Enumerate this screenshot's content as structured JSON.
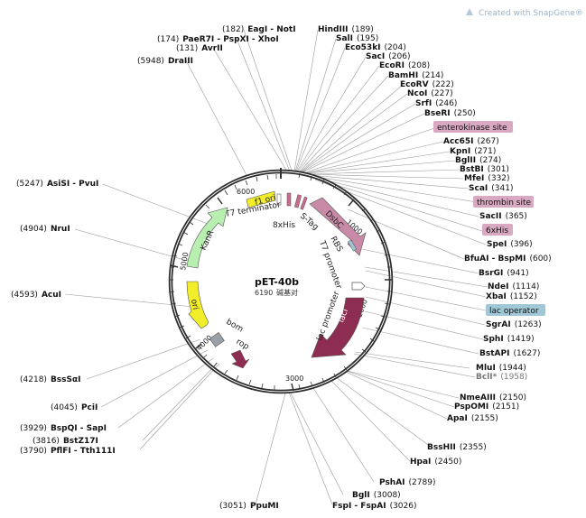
{
  "plasmid": {
    "name": "pET-40b",
    "size": "6190",
    "size_unit": "碱基对"
  },
  "credit": "Created with SnapGene®",
  "ticks": [
    "1000",
    "2000",
    "3000",
    "4000",
    "5000",
    "6000"
  ],
  "sites": [
    {
      "name": "PaeR7I - PspXI - XhoI",
      "pos": "(174)"
    },
    {
      "name": "EagI - NotI",
      "pos": "(182)"
    },
    {
      "name": "AvrII",
      "pos": "(131)"
    },
    {
      "name": "DraIII",
      "pos": "(5948)"
    },
    {
      "name": "HindIII",
      "pos": "(189)"
    },
    {
      "name": "SalI",
      "pos": "(195)"
    },
    {
      "name": "Eco53kI",
      "pos": "(204)"
    },
    {
      "name": "SacI",
      "pos": "(206)"
    },
    {
      "name": "EcoRI",
      "pos": "(208)"
    },
    {
      "name": "BamHI",
      "pos": "(214)"
    },
    {
      "name": "EcoRV",
      "pos": "(222)"
    },
    {
      "name": "NcoI",
      "pos": "(227)"
    },
    {
      "name": "SrfI",
      "pos": "(246)"
    },
    {
      "name": "BseRI",
      "pos": "(250)"
    },
    {
      "name": "Acc65I",
      "pos": "(267)"
    },
    {
      "name": "KpnI",
      "pos": "(271)"
    },
    {
      "name": "BglII",
      "pos": "(274)"
    },
    {
      "name": "BstBI",
      "pos": "(301)"
    },
    {
      "name": "MfeI",
      "pos": "(332)"
    },
    {
      "name": "ScaI",
      "pos": "(341)"
    },
    {
      "name": "SacII",
      "pos": "(365)"
    },
    {
      "name": "SpeI",
      "pos": "(396)"
    },
    {
      "name": "BfuAI - BspMI",
      "pos": "(600)"
    },
    {
      "name": "BsrGI",
      "pos": "(941)"
    },
    {
      "name": "NdeI",
      "pos": "(1114)"
    },
    {
      "name": "XbaI",
      "pos": "(1152)"
    },
    {
      "name": "SgrAI",
      "pos": "(1263)"
    },
    {
      "name": "SphI",
      "pos": "(1419)"
    },
    {
      "name": "BstAPI",
      "pos": "(1627)"
    },
    {
      "name": "MluI",
      "pos": "(1944)"
    },
    {
      "name": "BclI*",
      "pos": "(1958)"
    },
    {
      "name": "NmeAIII",
      "pos": "(2150)"
    },
    {
      "name": "PspOMI",
      "pos": "(2151)"
    },
    {
      "name": "ApaI",
      "pos": "(2155)"
    },
    {
      "name": "BssHII",
      "pos": "(2355)"
    },
    {
      "name": "HpaI",
      "pos": "(2450)"
    },
    {
      "name": "PshAI",
      "pos": "(2789)"
    },
    {
      "name": "BglI",
      "pos": "(3008)"
    },
    {
      "name": "FspI - FspAI",
      "pos": "(3026)"
    },
    {
      "name": "PpuMI",
      "pos": "(3051)"
    },
    {
      "name": "PflFI - Tth111I",
      "pos": "(3790)"
    },
    {
      "name": "BstZ17I",
      "pos": "(3816)"
    },
    {
      "name": "BspQI - SapI",
      "pos": "(3929)"
    },
    {
      "name": "PciI",
      "pos": "(4045)"
    },
    {
      "name": "BssSαI",
      "pos": "(4218)"
    },
    {
      "name": "AcuI",
      "pos": "(4593)"
    },
    {
      "name": "NruI",
      "pos": "(4904)"
    },
    {
      "name": "AsiSI - PvuI",
      "pos": "(5247)"
    }
  ],
  "feature_boxes": [
    {
      "label": "enterokinase site",
      "color": "#d9a9c2"
    },
    {
      "label": "thrombin site",
      "color": "#d9a9c2"
    },
    {
      "label": "6xHis",
      "color": "#d9a9c2"
    },
    {
      "label": "lac operator",
      "color": "#9fc7d6"
    }
  ],
  "features": {
    "f1_ori": "f1 ori",
    "t7_terminator": "T7 terminator",
    "his8": "8xHis",
    "stag": "S-Tag",
    "dsbc": "DsbC",
    "rbs": "RBS",
    "t7_promoter": "T7 promoter",
    "kanr": "KanR",
    "ori": "ori",
    "bom": "bom",
    "rop": "rop",
    "laci": "lacI",
    "lac_promoter": "lac promoter"
  },
  "colors": {
    "f1_ori": "#f3ee2a",
    "kanr": "#b8efb0",
    "ori": "#f3ee2a",
    "bom": "#9aa1a8",
    "rop": "#8e2d52",
    "laci": "#8e2d52",
    "dsbc": "#c98aa8",
    "pink_small": "#c96b8c",
    "lac_op": "#9fc7d6"
  }
}
